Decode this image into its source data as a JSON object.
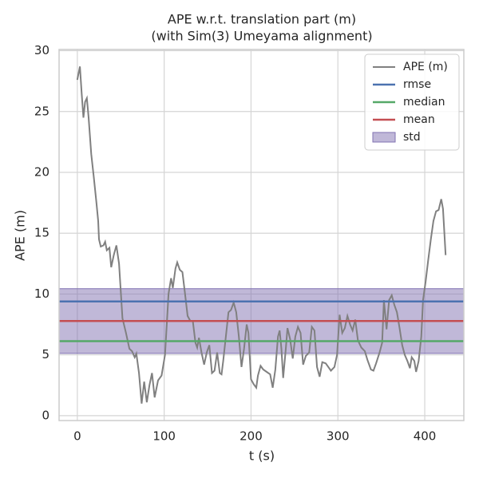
{
  "chart_data": {
    "type": "line",
    "title": "APE w.r.t. translation part (m)",
    "subtitle": "(with Sim(3) Umeyama alignment)",
    "x_label": "t (s)",
    "y_label": "APE (m)",
    "xlim": [
      -21,
      445
    ],
    "ylim": [
      -0.4,
      30.1
    ],
    "xticks": [
      0,
      100,
      200,
      300,
      400
    ],
    "yticks": [
      0,
      5,
      10,
      15,
      20,
      25,
      30
    ],
    "grid": true,
    "legend": "upper right",
    "series": [
      {
        "name": "APE (m)",
        "color": "#808080",
        "x": [
          0,
          3,
          5,
          7,
          9,
          11,
          13,
          16,
          19,
          22,
          24,
          25,
          27,
          30,
          32,
          34,
          37,
          39,
          42,
          45,
          48,
          52,
          56,
          60,
          63,
          66,
          68,
          71,
          74,
          77,
          80,
          83,
          86,
          89,
          93,
          97,
          101,
          105,
          108,
          110,
          113,
          115,
          118,
          121,
          124,
          127,
          130,
          133,
          136,
          138,
          140,
          143,
          146,
          149,
          152,
          155,
          158,
          161,
          164,
          166,
          168,
          171,
          174,
          177,
          180,
          183,
          186,
          189,
          192,
          195,
          197,
          200,
          203,
          206,
          208,
          211,
          214,
          218,
          222,
          225,
          228,
          231,
          233,
          235,
          237,
          240,
          242,
          245,
          248,
          251,
          254,
          257,
          260,
          263,
          267,
          270,
          273,
          276,
          279,
          282,
          286,
          289,
          292,
          296,
          299,
          302,
          305,
          308,
          311,
          314,
          317,
          320,
          323,
          327,
          331,
          334,
          338,
          341,
          344,
          348,
          351,
          353,
          356,
          359,
          362,
          365,
          368,
          371,
          374,
          377,
          380,
          383,
          385,
          388,
          390,
          393,
          396,
          398,
          401,
          404,
          407,
          410,
          413,
          416,
          419,
          421,
          424
        ],
        "values": [
          27.6,
          28.7,
          26.5,
          24.5,
          25.8,
          26.1,
          24.5,
          21.5,
          19.6,
          17.5,
          16,
          14.5,
          13.9,
          14.0,
          14.3,
          13.6,
          13.8,
          12.2,
          13.2,
          14.0,
          12.5,
          8,
          6.8,
          5.5,
          5.3,
          4.8,
          5.1,
          3.5,
          1.0,
          2.8,
          1.1,
          2.5,
          3.5,
          1.5,
          2.9,
          3.3,
          5,
          10,
          11.3,
          10.5,
          12.1,
          12.6,
          12.0,
          11.8,
          10.0,
          8.2,
          7.8,
          7.8,
          6.0,
          5.6,
          6.4,
          5.2,
          4.2,
          5.2,
          5.8,
          3.5,
          3.7,
          5.2,
          3.5,
          3.4,
          4.5,
          6.5,
          8.5,
          8.7,
          9.3,
          8.5,
          6.5,
          4.0,
          5.5,
          7.5,
          6.8,
          3.0,
          2.6,
          2.3,
          3.3,
          4.1,
          3.8,
          3.6,
          3.4,
          2.3,
          3.8,
          6.5,
          7.0,
          5.5,
          3.1,
          5.5,
          7.2,
          6.3,
          4.7,
          6.5,
          7.3,
          6.8,
          4.2,
          4.9,
          5.2,
          7.3,
          7.0,
          4.0,
          3.2,
          4.4,
          4.3,
          4.0,
          3.7,
          4.0,
          5,
          8.3,
          6.8,
          7.2,
          8.2,
          7.5,
          7.0,
          7.9,
          6.2,
          5.6,
          5.3,
          4.6,
          3.8,
          3.7,
          4.3,
          5.2,
          6.0,
          9.5,
          7.1,
          9.5,
          9.9,
          9.1,
          8.5,
          7.2,
          5.8,
          5.0,
          4.5,
          3.9,
          4.8,
          4.5,
          3.6,
          4.5,
          6.5,
          9.5,
          11,
          12.8,
          14.5,
          16,
          16.8,
          16.9,
          17.8,
          17.0,
          13.2
        ]
      }
    ],
    "hlines": [
      {
        "name": "rmse",
        "color": "#4c72b0",
        "value": 9.39
      },
      {
        "name": "median",
        "color": "#55a868",
        "value": 6.13
      },
      {
        "name": "mean",
        "color": "#c44e52",
        "value": 7.78
      }
    ],
    "band": {
      "name": "std",
      "color": "#8172b2",
      "value": 2.66
    }
  }
}
